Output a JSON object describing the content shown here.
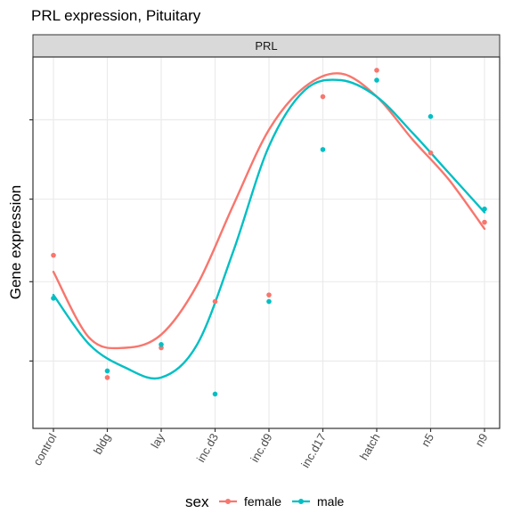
{
  "chart_data": {
    "type": "scatter",
    "title": "PRL expression, Pituitary",
    "facet_label": "PRL",
    "xlabel": "",
    "ylabel": "Gene expression",
    "categories": [
      "control",
      "bldg",
      "lay",
      "inc.d3",
      "inc.d9",
      "inc.d17",
      "hatch",
      "n5",
      "n9"
    ],
    "ylim": [
      0,
      1
    ],
    "y_tick_values": [
      0.15,
      0.39,
      0.64,
      0.88
    ],
    "grid": true,
    "smooth": "loess",
    "legend": {
      "title": "sex",
      "position": "bottom"
    },
    "series": [
      {
        "name": "female",
        "color": "#F8766D",
        "values": [
          0.47,
          0.1,
          0.19,
          0.33,
          0.35,
          0.95,
          1.03,
          0.78,
          0.57
        ],
        "smooth_values": [
          0.42,
          0.22,
          0.19,
          0.23,
          0.38,
          0.62,
          0.85,
          0.98,
          1.02,
          0.95,
          0.82,
          0.7,
          0.55
        ]
      },
      {
        "name": "male",
        "color": "#00BFC4",
        "values": [
          0.34,
          0.12,
          0.2,
          0.05,
          0.33,
          0.79,
          1.0,
          0.89,
          0.61
        ],
        "smooth_values": [
          0.35,
          0.2,
          0.13,
          0.1,
          0.2,
          0.48,
          0.8,
          0.97,
          1.0,
          0.95,
          0.84,
          0.72,
          0.6
        ]
      }
    ]
  }
}
